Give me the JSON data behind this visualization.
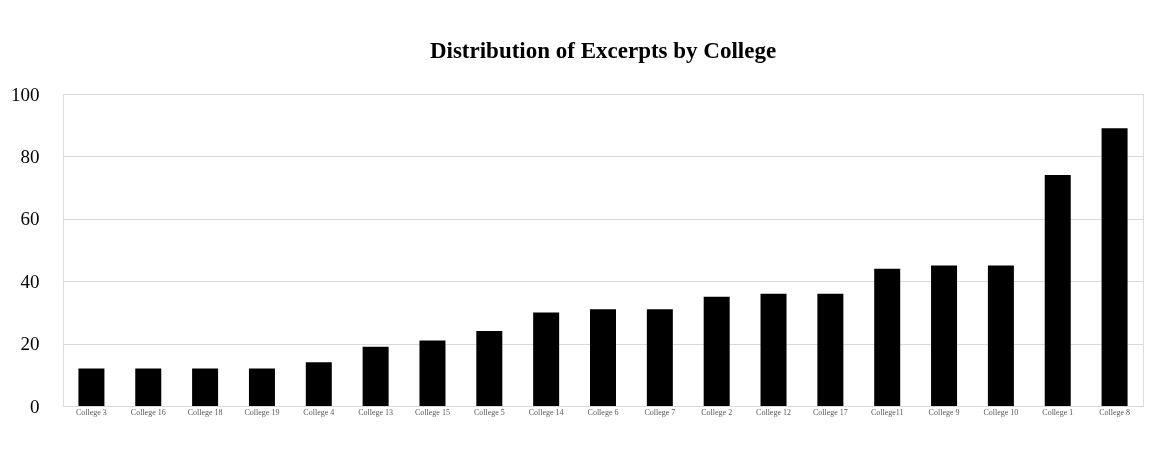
{
  "chart_data": {
    "type": "bar",
    "title": "Distribution of Excerpts by College",
    "categories": [
      "College 3",
      "College 16",
      "College 18",
      "College 19",
      "College 4",
      "College 13",
      "College 15",
      "College 5",
      "College 14",
      "College 6",
      "College 7",
      "College 2",
      "College 12",
      "College 17",
      "College11",
      "College 9",
      "College 10",
      "College 1",
      "College 8"
    ],
    "values": [
      12,
      12,
      12,
      12,
      14,
      19,
      21,
      24,
      30,
      31,
      31,
      35,
      36,
      36,
      44,
      45,
      45,
      74,
      89
    ],
    "color": "#000000",
    "ylim": [
      0,
      100
    ],
    "yticks": [
      0,
      20,
      40,
      60,
      80,
      100
    ],
    "grid": "y"
  }
}
